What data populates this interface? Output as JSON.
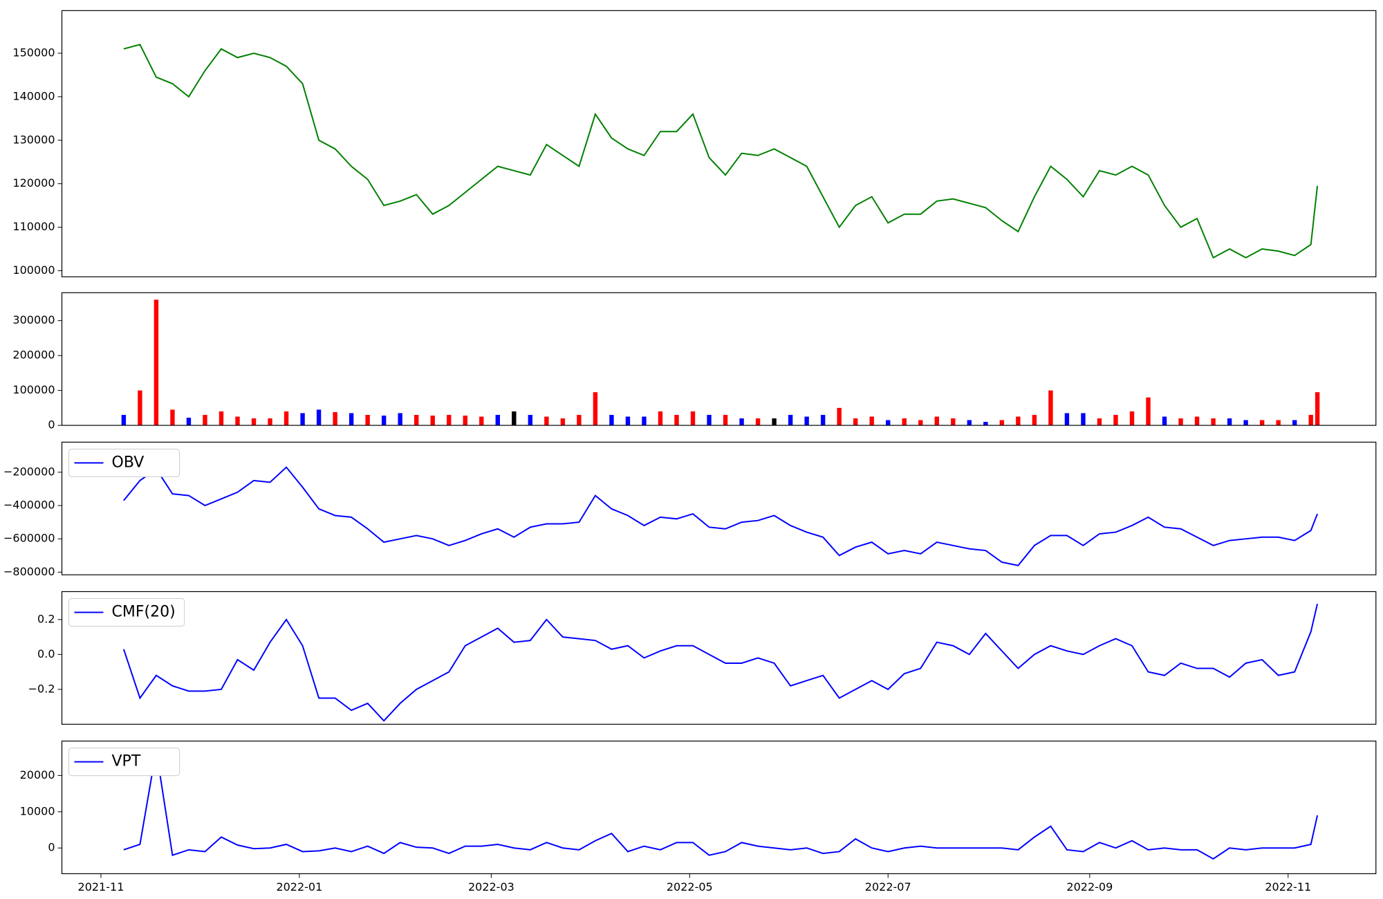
{
  "chart_data": [
    {
      "type": "line",
      "x": [
        7,
        12,
        17,
        22,
        27,
        32,
        37,
        42,
        47,
        52,
        57,
        62,
        67,
        72,
        77,
        82,
        87,
        92,
        97,
        102,
        107,
        112,
        117,
        122,
        127,
        132,
        137,
        142,
        147,
        152,
        157,
        162,
        167,
        172,
        177,
        182,
        187,
        192,
        197,
        202,
        207,
        212,
        217,
        222,
        227,
        232,
        237,
        242,
        247,
        252,
        257,
        262,
        267,
        272,
        277,
        282,
        287,
        292,
        297,
        302,
        307,
        312,
        317,
        322,
        327,
        332,
        337,
        342,
        347,
        352,
        357,
        362,
        367,
        372,
        374
      ],
      "xlim": [
        -12,
        392
      ],
      "ylim": [
        98600,
        159800
      ],
      "yticks": [
        100000,
        110000,
        120000,
        130000,
        140000,
        150000
      ],
      "series": [
        {
          "color": "#008000",
          "values": [
            151000,
            152000,
            144500,
            143000,
            140000,
            146000,
            151000,
            149000,
            150000,
            149000,
            147000,
            143000,
            130000,
            128000,
            124000,
            121000,
            115000,
            116000,
            117500,
            113000,
            115000,
            118000,
            121000,
            124000,
            123000,
            122000,
            129000,
            126500,
            124000,
            136000,
            130500,
            128000,
            126500,
            132000,
            132000,
            136000,
            126000,
            122000,
            127000,
            126500,
            128000,
            126000,
            124000,
            117000,
            110000,
            115000,
            117000,
            111000,
            113000,
            113000,
            116000,
            116500,
            115500,
            114500,
            111500,
            109000,
            117000,
            124000,
            121000,
            117000,
            123000,
            122000,
            124000,
            122000,
            115000,
            110000,
            112000,
            103000,
            105000,
            103000,
            105000,
            104500,
            103500,
            106000,
            119500
          ]
        }
      ]
    },
    {
      "type": "bar",
      "x": [
        7,
        12,
        17,
        22,
        27,
        32,
        37,
        42,
        47,
        52,
        57,
        62,
        67,
        72,
        77,
        82,
        87,
        92,
        97,
        102,
        107,
        112,
        117,
        122,
        127,
        132,
        137,
        142,
        147,
        152,
        157,
        162,
        167,
        172,
        177,
        182,
        187,
        192,
        197,
        202,
        207,
        212,
        217,
        222,
        227,
        232,
        237,
        242,
        247,
        252,
        257,
        262,
        267,
        272,
        277,
        282,
        287,
        292,
        297,
        302,
        307,
        312,
        317,
        322,
        327,
        332,
        337,
        342,
        347,
        352,
        357,
        362,
        367,
        372,
        374
      ],
      "xlim": [
        -12,
        392
      ],
      "ylim": [
        0,
        380000
      ],
      "yticks": [
        0,
        100000,
        200000,
        300000
      ],
      "values": [
        30000,
        100000,
        360000,
        45000,
        22000,
        30000,
        40000,
        25000,
        20000,
        20000,
        40000,
        35000,
        45000,
        38000,
        35000,
        30000,
        28000,
        35000,
        30000,
        28000,
        30000,
        28000,
        25000,
        30000,
        40000,
        30000,
        25000,
        20000,
        30000,
        95000,
        30000,
        25000,
        25000,
        40000,
        30000,
        40000,
        30000,
        30000,
        20000,
        20000,
        20000,
        30000,
        25000,
        30000,
        50000,
        20000,
        25000,
        15000,
        20000,
        15000,
        25000,
        20000,
        15000,
        10000,
        15000,
        25000,
        30000,
        100000,
        35000,
        35000,
        20000,
        30000,
        40000,
        80000,
        25000,
        20000,
        25000,
        20000,
        20000,
        15000,
        15000,
        15000,
        15000,
        30000,
        95000
      ],
      "colors": [
        "blue",
        "red",
        "red",
        "red",
        "blue",
        "red",
        "red",
        "red",
        "red",
        "red",
        "red",
        "blue",
        "blue",
        "red",
        "blue",
        "red",
        "blue",
        "blue",
        "red",
        "red",
        "red",
        "red",
        "red",
        "blue",
        "black",
        "blue",
        "red",
        "red",
        "red",
        "red",
        "blue",
        "blue",
        "blue",
        "red",
        "red",
        "red",
        "blue",
        "red",
        "blue",
        "red",
        "black",
        "blue",
        "blue",
        "blue",
        "red",
        "red",
        "red",
        "blue",
        "red",
        "red",
        "red",
        "red",
        "blue",
        "blue",
        "red",
        "red",
        "red",
        "red",
        "blue",
        "blue",
        "red",
        "red",
        "red",
        "red",
        "blue",
        "red",
        "red",
        "red",
        "blue",
        "blue",
        "red",
        "red",
        "blue",
        "red",
        "red"
      ]
    },
    {
      "type": "line",
      "x": [
        7,
        12,
        17,
        22,
        27,
        32,
        37,
        42,
        47,
        52,
        57,
        62,
        67,
        72,
        77,
        82,
        87,
        92,
        97,
        102,
        107,
        112,
        117,
        122,
        127,
        132,
        137,
        142,
        147,
        152,
        157,
        162,
        167,
        172,
        177,
        182,
        187,
        192,
        197,
        202,
        207,
        212,
        217,
        222,
        227,
        232,
        237,
        242,
        247,
        252,
        257,
        262,
        267,
        272,
        277,
        282,
        287,
        292,
        297,
        302,
        307,
        312,
        317,
        322,
        327,
        332,
        337,
        342,
        347,
        352,
        357,
        362,
        367,
        372,
        374
      ],
      "xlim": [
        -12,
        392
      ],
      "ylim": [
        -816000,
        -19400
      ],
      "yticks": [
        {
          "value": -800000,
          "label": "−800000"
        },
        {
          "value": -600000,
          "label": "−600000"
        },
        {
          "value": -400000,
          "label": "−400000"
        },
        {
          "value": -200000,
          "label": "−200000"
        }
      ],
      "legend": "upper left",
      "series": [
        {
          "name": "OBV",
          "color": "blue",
          "values": [
            -370000,
            -250000,
            -180000,
            -330000,
            -340000,
            -400000,
            -360000,
            -320000,
            -250000,
            -260000,
            -170000,
            -290000,
            -420000,
            -460000,
            -470000,
            -540000,
            -620000,
            -600000,
            -580000,
            -600000,
            -640000,
            -610000,
            -570000,
            -540000,
            -590000,
            -530000,
            -510000,
            -510000,
            -500000,
            -340000,
            -420000,
            -460000,
            -520000,
            -470000,
            -480000,
            -450000,
            -530000,
            -540000,
            -500000,
            -490000,
            -460000,
            -520000,
            -560000,
            -590000,
            -700000,
            -650000,
            -620000,
            -690000,
            -670000,
            -690000,
            -620000,
            -640000,
            -660000,
            -670000,
            -740000,
            -760000,
            -640000,
            -580000,
            -580000,
            -640000,
            -570000,
            -560000,
            -520000,
            -470000,
            -530000,
            -540000,
            -590000,
            -640000,
            -610000,
            -600000,
            -590000,
            -590000,
            -610000,
            -550000,
            -450000
          ]
        }
      ]
    },
    {
      "type": "line",
      "x": [
        7,
        12,
        17,
        22,
        27,
        32,
        37,
        42,
        47,
        52,
        57,
        62,
        67,
        72,
        77,
        82,
        87,
        92,
        97,
        102,
        107,
        112,
        117,
        122,
        127,
        132,
        137,
        142,
        147,
        152,
        157,
        162,
        167,
        172,
        177,
        182,
        187,
        192,
        197,
        202,
        207,
        212,
        217,
        222,
        227,
        232,
        237,
        242,
        247,
        252,
        257,
        262,
        267,
        272,
        277,
        282,
        287,
        292,
        297,
        302,
        307,
        312,
        317,
        322,
        327,
        332,
        337,
        342,
        347,
        352,
        357,
        362,
        367,
        372,
        374
      ],
      "xlim": [
        -12,
        392
      ],
      "ylim": [
        -0.4,
        0.36
      ],
      "yticks": [
        {
          "value": -0.2,
          "label": "−0.2"
        },
        {
          "value": 0,
          "label": "0.0"
        },
        {
          "value": 0.2,
          "label": "0.2"
        }
      ],
      "legend": "upper left",
      "series": [
        {
          "name": "CMF(20)",
          "color": "blue",
          "values": [
            0.03,
            -0.25,
            -0.12,
            -0.18,
            -0.21,
            -0.21,
            -0.2,
            -0.03,
            -0.09,
            0.07,
            0.2,
            0.05,
            -0.25,
            -0.25,
            -0.32,
            -0.28,
            -0.38,
            -0.28,
            -0.2,
            -0.15,
            -0.1,
            0.05,
            0.1,
            0.15,
            0.07,
            0.08,
            0.2,
            0.1,
            0.09,
            0.08,
            0.03,
            0.05,
            -0.02,
            0.02,
            0.05,
            0.05,
            0,
            -0.05,
            -0.05,
            -0.02,
            -0.05,
            -0.18,
            -0.15,
            -0.12,
            -0.25,
            -0.2,
            -0.15,
            -0.2,
            -0.11,
            -0.08,
            0.07,
            0.05,
            0,
            0.12,
            0.02,
            -0.08,
            0,
            0.05,
            0.02,
            0,
            0.05,
            0.09,
            0.05,
            -0.1,
            -0.12,
            -0.05,
            -0.08,
            -0.08,
            -0.13,
            -0.05,
            -0.03,
            -0.12,
            -0.1,
            0.13,
            0.29
          ]
        }
      ]
    },
    {
      "type": "line",
      "x": [
        7,
        12,
        17,
        22,
        27,
        32,
        37,
        42,
        47,
        52,
        57,
        62,
        67,
        72,
        77,
        82,
        87,
        92,
        97,
        102,
        107,
        112,
        117,
        122,
        127,
        132,
        137,
        142,
        147,
        152,
        157,
        162,
        167,
        172,
        177,
        182,
        187,
        192,
        197,
        202,
        207,
        212,
        217,
        222,
        227,
        232,
        237,
        242,
        247,
        252,
        257,
        262,
        267,
        272,
        277,
        282,
        287,
        292,
        297,
        302,
        307,
        312,
        317,
        322,
        327,
        332,
        337,
        342,
        347,
        352,
        357,
        362,
        367,
        372,
        374
      ],
      "xlim": [
        -12,
        392
      ],
      "xticks": [
        {
          "value": 0,
          "label": "2021-11"
        },
        {
          "value": 61,
          "label": "2022-01"
        },
        {
          "value": 120,
          "label": "2022-03"
        },
        {
          "value": 181,
          "label": "2022-05"
        },
        {
          "value": 242,
          "label": "2022-07"
        },
        {
          "value": 304,
          "label": "2022-09"
        },
        {
          "value": 365,
          "label": "2022-11"
        }
      ],
      "ylim": [
        -7100,
        29500
      ],
      "yticks": [
        0,
        10000,
        20000
      ],
      "legend": "upper left",
      "series": [
        {
          "name": "VPT",
          "color": "blue",
          "values": [
            -500,
            1000,
            27000,
            -2000,
            -500,
            -1000,
            3000,
            800,
            -200,
            0,
            1000,
            -1000,
            -800,
            0,
            -1000,
            500,
            -1500,
            1500,
            200,
            0,
            -1500,
            500,
            500,
            1000,
            0,
            -500,
            1500,
            0,
            -500,
            2000,
            4000,
            -1000,
            500,
            -500,
            1500,
            1500,
            -2000,
            -1000,
            1500,
            500,
            0,
            -500,
            0,
            -1500,
            -1000,
            2500,
            0,
            -1000,
            0,
            500,
            0,
            0,
            0,
            0,
            0,
            -500,
            3000,
            6000,
            -500,
            -1000,
            1500,
            0,
            2000,
            -500,
            0,
            -500,
            -500,
            -3000,
            0,
            -500,
            0,
            0,
            0,
            1000,
            9000
          ]
        }
      ]
    }
  ]
}
